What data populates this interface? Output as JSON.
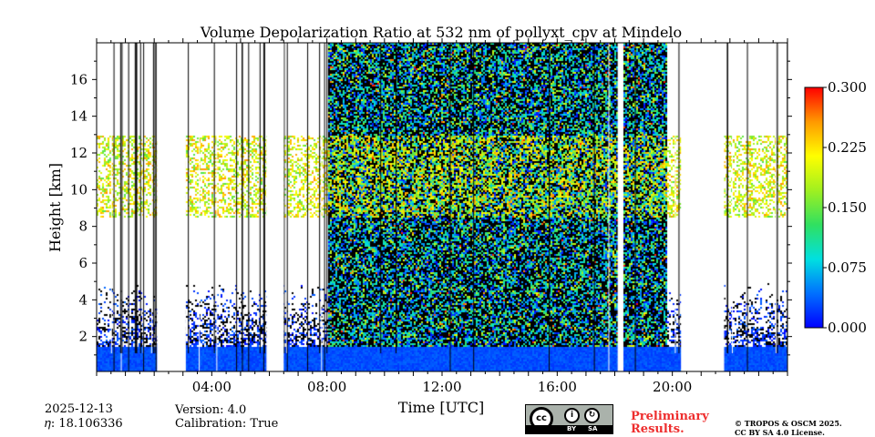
{
  "chart_data": {
    "type": "heatmap",
    "title": "Volume Depolarization Ratio at 532 nm of pollyxt_cpv at Mindelo",
    "xlabel": "Time [UTC]",
    "ylabel": "Height [km]",
    "xlim_hours": [
      0,
      24
    ],
    "ylim_km": [
      0.1,
      18
    ],
    "x_ticks": [
      {
        "hours": 4,
        "label": "04:00"
      },
      {
        "hours": 8,
        "label": "08:00"
      },
      {
        "hours": 12,
        "label": "12:00"
      },
      {
        "hours": 16,
        "label": "16:00"
      },
      {
        "hours": 20,
        "label": "20:00"
      }
    ],
    "y_ticks": [
      {
        "km": 2,
        "label": "2"
      },
      {
        "km": 4,
        "label": "4"
      },
      {
        "km": 6,
        "label": "6"
      },
      {
        "km": 8,
        "label": "8"
      },
      {
        "km": 10,
        "label": "10"
      },
      {
        "km": 12,
        "label": "12"
      },
      {
        "km": 14,
        "label": "14"
      },
      {
        "km": 16,
        "label": "16"
      }
    ],
    "colorbar": {
      "min": 0.0,
      "max": 0.3,
      "ticks": [
        {
          "value": 0.0,
          "label": "0.000"
        },
        {
          "value": 0.075,
          "label": "0.075"
        },
        {
          "value": 0.15,
          "label": "0.150"
        },
        {
          "value": 0.225,
          "label": "0.225"
        },
        {
          "value": 0.3,
          "label": "0.300"
        }
      ],
      "colormap": [
        "#0000ff",
        "#0070ff",
        "#00e0e0",
        "#30e060",
        "#a0f020",
        "#ffff00",
        "#ff9900",
        "#ff0000"
      ]
    },
    "features": {
      "boundary_layer_top_km": 1.5,
      "boundary_layer_depol": 0.02,
      "ice_cloud_layer_km": [
        8.5,
        13
      ],
      "ice_cloud_depol": 0.2,
      "noisy_daytime_period_hours": [
        8,
        19.8
      ],
      "data_gaps_hours": [
        2.1,
        3.1,
        5.9,
        6.5,
        18.1,
        18.3,
        20.3,
        21.8
      ]
    }
  },
  "info": {
    "date": "2025-12-13",
    "eta": "𝜂: 18.106336",
    "version": "Version: 4.0",
    "calibration": "Calibration: True",
    "preliminary_line1": "Preliminary",
    "preliminary_line2": "Results.",
    "copyright_line1": "© TROPOS & OSCM 2025.",
    "copyright_line2": "CC BY SA 4.0 License."
  },
  "license_badge": {
    "logo": "cc",
    "by": "BY",
    "sa": "SA"
  }
}
